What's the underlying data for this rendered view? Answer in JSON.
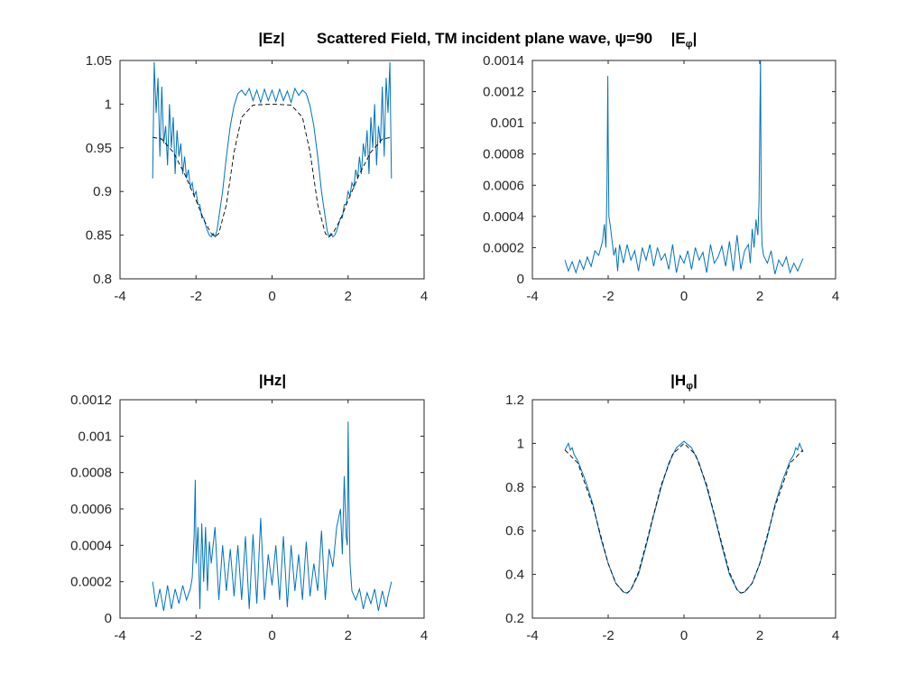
{
  "figure": {
    "suptitle": "Scattered Field, TM incident plane wave, ψ=90",
    "colors": {
      "series": "#0072BD",
      "reference": "#000000",
      "axes": "#262626"
    }
  },
  "chart_data": [
    {
      "type": "line",
      "title": "|Ez|",
      "title_main": "|E",
      "title_sub": "",
      "xlim": [
        -4,
        4
      ],
      "ylim": [
        0.8,
        1.05
      ],
      "xticks": [
        "-4",
        "-2",
        "0",
        "2",
        "4"
      ],
      "yticks": [
        "0.8",
        "0.85",
        "0.9",
        "0.95",
        "1",
        "1.05"
      ],
      "series": [
        {
          "style": "solid",
          "x": [
            -3.14,
            -3.1,
            -3.05,
            -3.0,
            -2.95,
            -2.9,
            -2.85,
            -2.8,
            -2.75,
            -2.7,
            -2.65,
            -2.6,
            -2.55,
            -2.5,
            -2.45,
            -2.4,
            -2.35,
            -2.3,
            -2.25,
            -2.2,
            -2.15,
            -2.1,
            -2.05,
            -2.0,
            -1.95,
            -1.9,
            -1.85,
            -1.8,
            -1.75,
            -1.7,
            -1.65,
            -1.6,
            -1.55,
            -1.5,
            -1.45,
            -1.4,
            -1.3,
            -1.2,
            -1.1,
            -1.0,
            -0.9,
            -0.8,
            -0.7,
            -0.6,
            -0.5,
            -0.4,
            -0.3,
            -0.2,
            -0.1,
            0.0,
            0.1,
            0.2,
            0.3,
            0.4,
            0.5,
            0.6,
            0.7,
            0.8,
            0.9,
            1.0,
            1.1,
            1.2,
            1.3,
            1.4,
            1.45,
            1.5,
            1.55,
            1.6,
            1.65,
            1.7,
            1.75,
            1.8,
            1.85,
            1.9,
            1.95,
            2.0,
            2.05,
            2.1,
            2.15,
            2.2,
            2.25,
            2.3,
            2.35,
            2.4,
            2.45,
            2.5,
            2.55,
            2.6,
            2.65,
            2.7,
            2.75,
            2.8,
            2.85,
            2.9,
            2.95,
            3.0,
            3.05,
            3.1,
            3.14
          ],
          "y": [
            0.915,
            1.048,
            0.99,
            1.03,
            0.94,
            1.02,
            0.955,
            0.975,
            0.93,
            1.0,
            0.95,
            0.985,
            0.92,
            0.97,
            0.94,
            0.955,
            0.92,
            0.94,
            0.915,
            0.925,
            0.905,
            0.91,
            0.895,
            0.9,
            0.885,
            0.885,
            0.87,
            0.87,
            0.862,
            0.855,
            0.85,
            0.848,
            0.852,
            0.848,
            0.855,
            0.87,
            0.9,
            0.94,
            0.975,
            0.998,
            1.012,
            1.016,
            1.01,
            1.018,
            1.004,
            1.016,
            1.002,
            1.017,
            1.004,
            1.016,
            1.003,
            1.017,
            1.004,
            1.015,
            1.002,
            1.018,
            1.01,
            1.016,
            1.012,
            0.998,
            0.975,
            0.94,
            0.9,
            0.87,
            0.855,
            0.848,
            0.852,
            0.848,
            0.85,
            0.855,
            0.862,
            0.87,
            0.87,
            0.885,
            0.885,
            0.9,
            0.895,
            0.91,
            0.905,
            0.925,
            0.915,
            0.94,
            0.92,
            0.955,
            0.94,
            0.97,
            0.92,
            0.985,
            0.95,
            1.0,
            0.93,
            0.975,
            0.955,
            1.02,
            0.94,
            1.03,
            0.99,
            1.048,
            0.915
          ]
        },
        {
          "style": "dashed",
          "x": [
            -3.14,
            -2.9,
            -2.6,
            -2.3,
            -2.0,
            -1.8,
            -1.6,
            -1.5,
            -1.4,
            -1.2,
            -1.0,
            -0.8,
            -0.5,
            0.0,
            0.5,
            0.8,
            1.0,
            1.2,
            1.4,
            1.5,
            1.6,
            1.8,
            2.0,
            2.3,
            2.6,
            2.9,
            3.14
          ],
          "y": [
            0.962,
            0.96,
            0.945,
            0.92,
            0.89,
            0.868,
            0.852,
            0.848,
            0.852,
            0.885,
            0.945,
            0.985,
            0.999,
            1.0,
            0.999,
            0.985,
            0.945,
            0.885,
            0.852,
            0.848,
            0.852,
            0.868,
            0.89,
            0.92,
            0.945,
            0.96,
            0.962
          ]
        }
      ]
    },
    {
      "type": "line",
      "title": "|Eφ|",
      "title_main": "|E",
      "title_sub": "φ",
      "xlim": [
        -4,
        4
      ],
      "ylim": [
        0,
        0.0014
      ],
      "xticks": [
        "-4",
        "-2",
        "0",
        "2",
        "4"
      ],
      "yticks": [
        "0",
        "0.0002",
        "0.0004",
        "0.0006",
        "0.0008",
        "0.001",
        "0.0012",
        "0.0014"
      ],
      "series": [
        {
          "style": "solid",
          "x": [
            -3.14,
            -3.05,
            -2.95,
            -2.85,
            -2.75,
            -2.65,
            -2.55,
            -2.45,
            -2.35,
            -2.25,
            -2.15,
            -2.1,
            -2.06,
            -2.03,
            -2.01,
            -2.0,
            -1.98,
            -1.95,
            -1.9,
            -1.85,
            -1.8,
            -1.75,
            -1.7,
            -1.6,
            -1.5,
            -1.4,
            -1.3,
            -1.2,
            -1.1,
            -1.0,
            -0.9,
            -0.8,
            -0.7,
            -0.6,
            -0.5,
            -0.4,
            -0.3,
            -0.2,
            -0.1,
            0.0,
            0.1,
            0.2,
            0.3,
            0.4,
            0.5,
            0.6,
            0.7,
            0.8,
            0.9,
            1.0,
            1.1,
            1.2,
            1.3,
            1.4,
            1.5,
            1.6,
            1.7,
            1.75,
            1.8,
            1.85,
            1.9,
            1.95,
            1.98,
            2.0,
            2.02,
            2.04,
            2.06,
            2.1,
            2.2,
            2.3,
            2.4,
            2.5,
            2.6,
            2.7,
            2.8,
            2.9,
            3.0,
            3.14
          ],
          "y": [
            0.00012,
            5e-05,
            0.00011,
            4e-05,
            0.00012,
            6e-05,
            0.00014,
            8e-05,
            0.00018,
            0.00015,
            0.00024,
            0.00035,
            0.0002,
            0.0006,
            0.0013,
            0.0009,
            0.0004,
            0.00035,
            0.00025,
            0.00015,
            0.0002,
            5e-05,
            0.00022,
            0.0001,
            0.00022,
            0.00012,
            0.00018,
            5e-05,
            0.0002,
            0.00012,
            0.00022,
            8e-05,
            0.0002,
            0.00012,
            0.00016,
            6e-05,
            0.00022,
            4e-05,
            0.00015,
            0.0001,
            0.00018,
            6e-05,
            0.0002,
            0.00012,
            0.00017,
            4e-05,
            0.00022,
            0.0001,
            0.00014,
            0.00021,
            8e-05,
            0.00024,
            5e-05,
            0.00028,
            6e-05,
            0.00018,
            0.00022,
            0.0001,
            0.00032,
            0.0002,
            0.00038,
            0.00028,
            0.0005,
            0.00095,
            0.0014,
            0.0004,
            0.00022,
            0.00015,
            0.0001,
            0.00018,
            3e-05,
            0.00012,
            8e-05,
            0.00014,
            4e-05,
            0.0001,
            5e-05,
            0.00013
          ]
        }
      ]
    },
    {
      "type": "line",
      "title": "|Hz|",
      "title_main": "|Hz|",
      "title_sub": "",
      "xlim": [
        -4,
        4
      ],
      "ylim": [
        0,
        0.0012
      ],
      "xticks": [
        "-4",
        "-2",
        "0",
        "2",
        "4"
      ],
      "yticks": [
        "0",
        "0.0002",
        "0.0004",
        "0.0006",
        "0.0008",
        "0.001",
        "0.0012"
      ],
      "series": [
        {
          "style": "solid",
          "x": [
            -3.14,
            -3.05,
            -2.95,
            -2.85,
            -2.75,
            -2.65,
            -2.55,
            -2.45,
            -2.35,
            -2.25,
            -2.15,
            -2.1,
            -2.05,
            -2.02,
            -2.0,
            -1.95,
            -1.9,
            -1.85,
            -1.8,
            -1.75,
            -1.7,
            -1.65,
            -1.6,
            -1.5,
            -1.4,
            -1.3,
            -1.2,
            -1.1,
            -1.0,
            -0.9,
            -0.8,
            -0.7,
            -0.6,
            -0.5,
            -0.4,
            -0.3,
            -0.2,
            -0.1,
            0.0,
            0.1,
            0.2,
            0.3,
            0.4,
            0.5,
            0.6,
            0.7,
            0.8,
            0.9,
            1.0,
            1.1,
            1.2,
            1.3,
            1.4,
            1.5,
            1.6,
            1.7,
            1.8,
            1.85,
            1.9,
            1.95,
            1.98,
            2.0,
            2.02,
            2.05,
            2.1,
            2.2,
            2.3,
            2.4,
            2.5,
            2.6,
            2.7,
            2.8,
            2.9,
            3.0,
            3.05,
            3.14
          ],
          "y": [
            0.0002,
            6e-05,
            0.00016,
            4e-05,
            0.00018,
            5e-05,
            0.00016,
            8e-05,
            0.00018,
            0.0001,
            0.00016,
            0.00022,
            0.00045,
            0.00076,
            0.0003,
            0.0005,
            5e-05,
            0.00052,
            0.0002,
            0.0005,
            0.00015,
            0.00042,
            0.0003,
            0.0005,
            0.0001,
            0.0004,
            0.00015,
            0.00038,
            0.00012,
            0.0004,
            0.0001,
            0.00045,
            5e-05,
            0.00046,
            8e-05,
            0.00055,
            0.0001,
            0.00035,
            0.00018,
            0.0004,
            0.0001,
            0.00045,
            6e-05,
            0.0004,
            0.00015,
            0.00035,
            0.0001,
            0.00042,
            0.00012,
            0.0003,
            0.00015,
            0.00048,
            0.0001,
            0.00038,
            0.00028,
            0.0005,
            0.0006,
            0.00035,
            0.00078,
            0.00045,
            0.0004,
            0.00108,
            0.0007,
            0.0003,
            0.00015,
            0.0001,
            0.00016,
            5e-05,
            0.00014,
            8e-05,
            0.00016,
            4e-05,
            0.00015,
            6e-05,
            0.00012,
            0.0002
          ]
        }
      ]
    },
    {
      "type": "line",
      "title": "|Hφ|",
      "title_main": "|H",
      "title_sub": "φ",
      "xlim": [
        -4,
        4
      ],
      "ylim": [
        0.2,
        1.2
      ],
      "xticks": [
        "-4",
        "-2",
        "0",
        "2",
        "4"
      ],
      "yticks": [
        "0.2",
        "0.4",
        "0.6",
        "0.8",
        "1",
        "1.2"
      ],
      "series": [
        {
          "style": "solid",
          "x": [
            -3.14,
            -3.05,
            -3.0,
            -2.95,
            -2.9,
            -2.8,
            -2.6,
            -2.4,
            -2.2,
            -2.0,
            -1.8,
            -1.6,
            -1.5,
            -1.4,
            -1.2,
            -1.0,
            -0.8,
            -0.6,
            -0.4,
            -0.2,
            0.0,
            0.2,
            0.4,
            0.6,
            0.8,
            1.0,
            1.2,
            1.4,
            1.5,
            1.6,
            1.8,
            2.0,
            2.2,
            2.4,
            2.6,
            2.8,
            2.9,
            2.95,
            3.0,
            3.05,
            3.14
          ],
          "y": [
            0.97,
            1.0,
            0.97,
            0.98,
            0.95,
            0.92,
            0.83,
            0.72,
            0.57,
            0.45,
            0.36,
            0.32,
            0.315,
            0.33,
            0.4,
            0.53,
            0.67,
            0.8,
            0.91,
            0.98,
            1.01,
            0.98,
            0.91,
            0.8,
            0.67,
            0.53,
            0.4,
            0.33,
            0.315,
            0.32,
            0.36,
            0.45,
            0.57,
            0.72,
            0.83,
            0.92,
            0.95,
            0.98,
            0.97,
            1.0,
            0.96
          ]
        },
        {
          "style": "dashed",
          "x": [
            -3.14,
            -2.8,
            -2.4,
            -2.0,
            -1.8,
            -1.6,
            -1.5,
            -1.4,
            -1.2,
            -1.0,
            -0.6,
            -0.3,
            0.0,
            0.3,
            0.6,
            1.0,
            1.2,
            1.4,
            1.5,
            1.6,
            1.8,
            2.0,
            2.4,
            2.8,
            3.14
          ],
          "y": [
            0.97,
            0.91,
            0.71,
            0.45,
            0.36,
            0.32,
            0.315,
            0.33,
            0.41,
            0.54,
            0.81,
            0.95,
            1.0,
            0.95,
            0.81,
            0.54,
            0.41,
            0.33,
            0.315,
            0.32,
            0.36,
            0.45,
            0.71,
            0.91,
            0.97
          ]
        }
      ]
    }
  ]
}
